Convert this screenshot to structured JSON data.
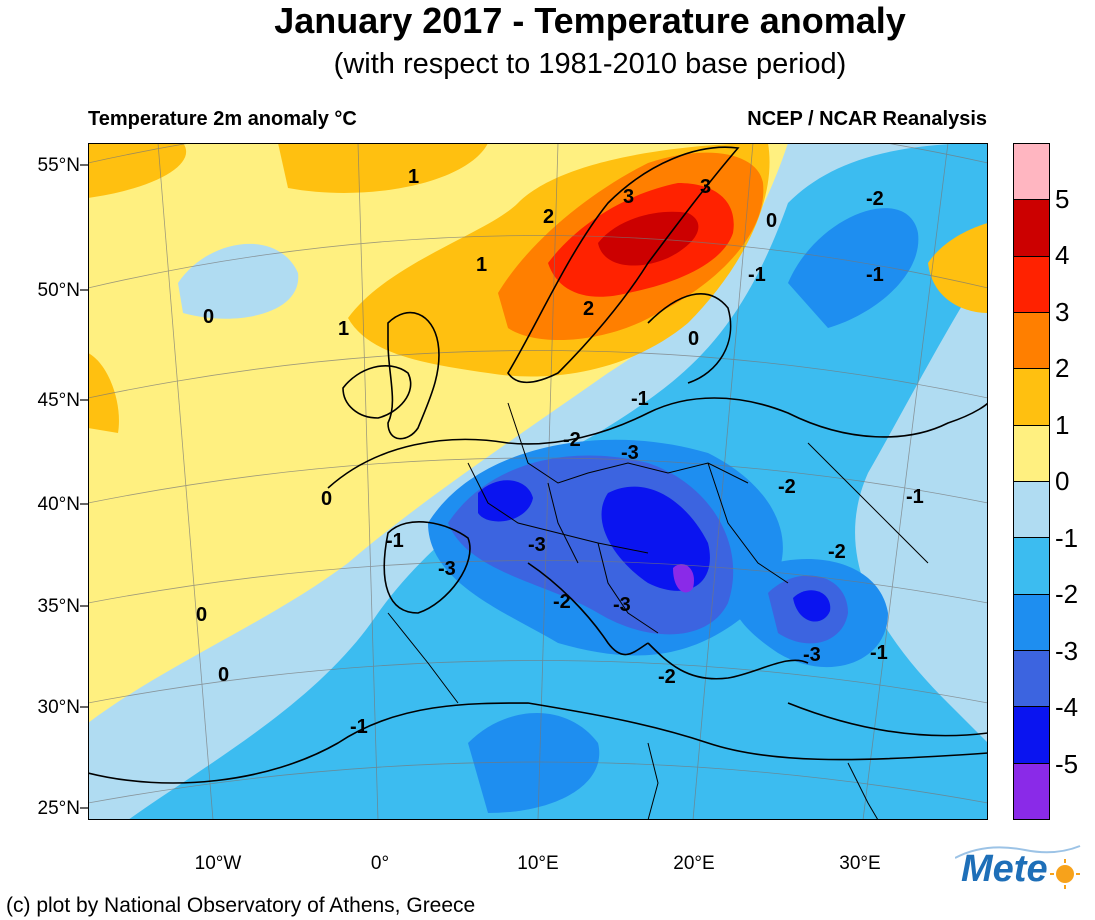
{
  "header": {
    "title": "January 2017 - Temperature anomaly",
    "subtitle": "(with respect to 1981-2010 base period)",
    "left_label": "Temperature 2m anomaly °C",
    "right_label": "NCEP / NCAR Reanalysis"
  },
  "axes": {
    "lat_labels": [
      "55°N",
      "50°N",
      "45°N",
      "40°N",
      "35°N",
      "30°N",
      "25°N"
    ],
    "lon_labels": [
      "10°W",
      "0°",
      "10°E",
      "20°E",
      "30°E"
    ]
  },
  "colorbar": {
    "labels": [
      "5",
      "4",
      "3",
      "2",
      "1",
      "0",
      "-1",
      "-2",
      "-3",
      "-4",
      "-5"
    ],
    "colors": [
      "#ffb6c1",
      "#cc0000",
      "#ff2200",
      "#ff7f00",
      "#ffc010",
      "#fff080",
      "#b0dcf2",
      "#3cbcf0",
      "#1e8ef0",
      "#3c64e0",
      "#0a14f0",
      "#8a2ae8"
    ]
  },
  "contour_labels": [
    "1",
    "2",
    "3",
    "0",
    "-1",
    "-2",
    "-3"
  ],
  "logo": {
    "text": "Mete"
  },
  "footer": {
    "credit": "(c) plot by National Observatory of Athens, Greece"
  }
}
